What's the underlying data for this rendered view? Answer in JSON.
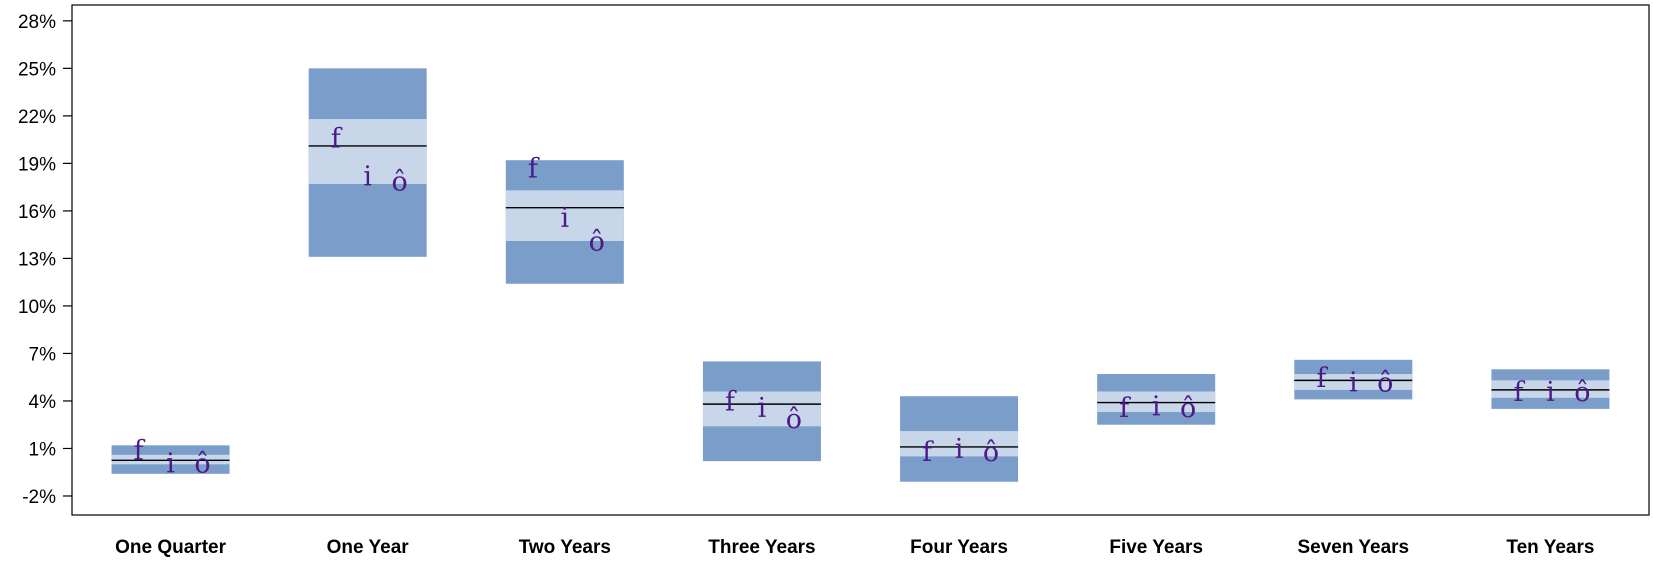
{
  "chart_data": {
    "type": "floating-bar",
    "title": "",
    "xlabel": "",
    "ylabel": "",
    "ylim": [
      -3.2,
      29.0
    ],
    "yticks": [
      -2,
      1,
      4,
      7,
      10,
      13,
      16,
      19,
      22,
      25,
      28
    ],
    "ytick_labels": [
      "-2%",
      "1%",
      "4%",
      "7%",
      "10%",
      "13%",
      "16%",
      "19%",
      "22%",
      "25%",
      "28%"
    ],
    "categories": [
      "One Quarter",
      "One Year",
      "Two Years",
      "Three Years",
      "Four Years",
      "Five Years",
      "Seven Years",
      "Ten Years"
    ],
    "bands": [
      {
        "outer_low": -0.6,
        "outer_high": 1.2,
        "inner_low": 0.0,
        "inner_high": 0.6,
        "median": 0.25
      },
      {
        "outer_low": 13.1,
        "outer_high": 25.0,
        "inner_low": 17.7,
        "inner_high": 21.8,
        "median": 20.1
      },
      {
        "outer_low": 11.4,
        "outer_high": 19.2,
        "inner_low": 14.1,
        "inner_high": 17.3,
        "median": 16.2
      },
      {
        "outer_low": 0.2,
        "outer_high": 6.5,
        "inner_low": 2.4,
        "inner_high": 4.6,
        "median": 3.8
      },
      {
        "outer_low": -1.1,
        "outer_high": 4.3,
        "inner_low": 0.5,
        "inner_high": 2.1,
        "median": 1.1
      },
      {
        "outer_low": 2.5,
        "outer_high": 5.7,
        "inner_low": 3.3,
        "inner_high": 4.6,
        "median": 3.9
      },
      {
        "outer_low": 4.1,
        "outer_high": 6.6,
        "inner_low": 4.7,
        "inner_high": 5.7,
        "median": 5.3
      },
      {
        "outer_low": 3.5,
        "outer_high": 6.0,
        "inner_low": 4.2,
        "inner_high": 5.3,
        "median": 4.7
      }
    ],
    "markers": {
      "glyphs": [
        "f",
        "i",
        "ô"
      ],
      "values": [
        [
          0.8,
          0.0,
          0.0
        ],
        [
          20.5,
          18.1,
          17.8
        ],
        [
          18.6,
          15.5,
          14.0
        ],
        [
          3.9,
          3.5,
          2.8
        ],
        [
          0.7,
          0.9,
          0.7
        ],
        [
          3.5,
          3.6,
          3.5
        ],
        [
          5.4,
          5.1,
          5.1
        ],
        [
          4.5,
          4.5,
          4.5
        ]
      ]
    },
    "colors": {
      "outer_band": "#7a9ec9",
      "inner_band": "#c8d6ea",
      "median_line": "#000000",
      "marker": "#4b1a87",
      "axis": "#000000"
    },
    "grid": false,
    "legend": "none"
  }
}
